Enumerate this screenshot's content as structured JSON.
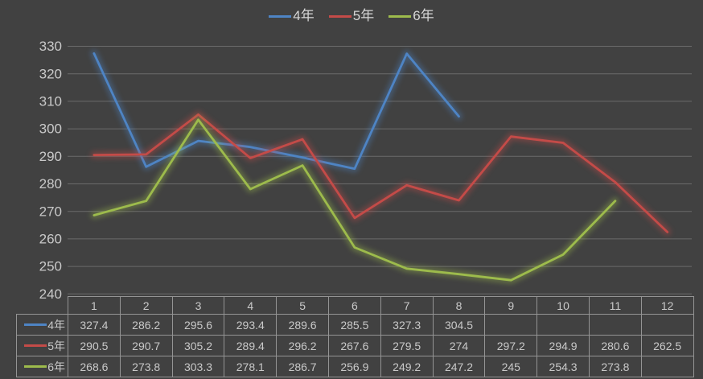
{
  "chart_data": {
    "type": "line",
    "title": "",
    "xlabel": "",
    "ylabel": "",
    "categories": [
      "1",
      "2",
      "3",
      "4",
      "5",
      "6",
      "7",
      "8",
      "9",
      "10",
      "11",
      "12"
    ],
    "series": [
      {
        "name": "4年",
        "color": "#4E84C4",
        "values": [
          327.4,
          286.2,
          295.6,
          293.4,
          289.6,
          285.5,
          327.3,
          304.5,
          null,
          null,
          null,
          null
        ]
      },
      {
        "name": "5年",
        "color": "#C44B48",
        "values": [
          290.5,
          290.7,
          305.2,
          289.4,
          296.2,
          267.6,
          279.5,
          274,
          297.2,
          294.9,
          280.6,
          262.5
        ]
      },
      {
        "name": "6年",
        "color": "#9DBB4C",
        "values": [
          268.6,
          273.8,
          303.3,
          278.1,
          286.7,
          256.9,
          249.2,
          247.2,
          245,
          254.3,
          273.8,
          null
        ]
      }
    ],
    "ylim": [
      240,
      330
    ],
    "yticks": [
      "240",
      "250",
      "260",
      "270",
      "280",
      "290",
      "300",
      "310",
      "320",
      "330"
    ],
    "grid": "horizontal-only",
    "legend_position": "top",
    "data_table_shown": true
  },
  "colors": {
    "background": "#414141",
    "gridline": "#6B6B6B",
    "axis_text": "#C9C9C9",
    "table_text": "#C9C9C9",
    "table_border": "#949494",
    "legend_text": "#D6D6D6"
  }
}
